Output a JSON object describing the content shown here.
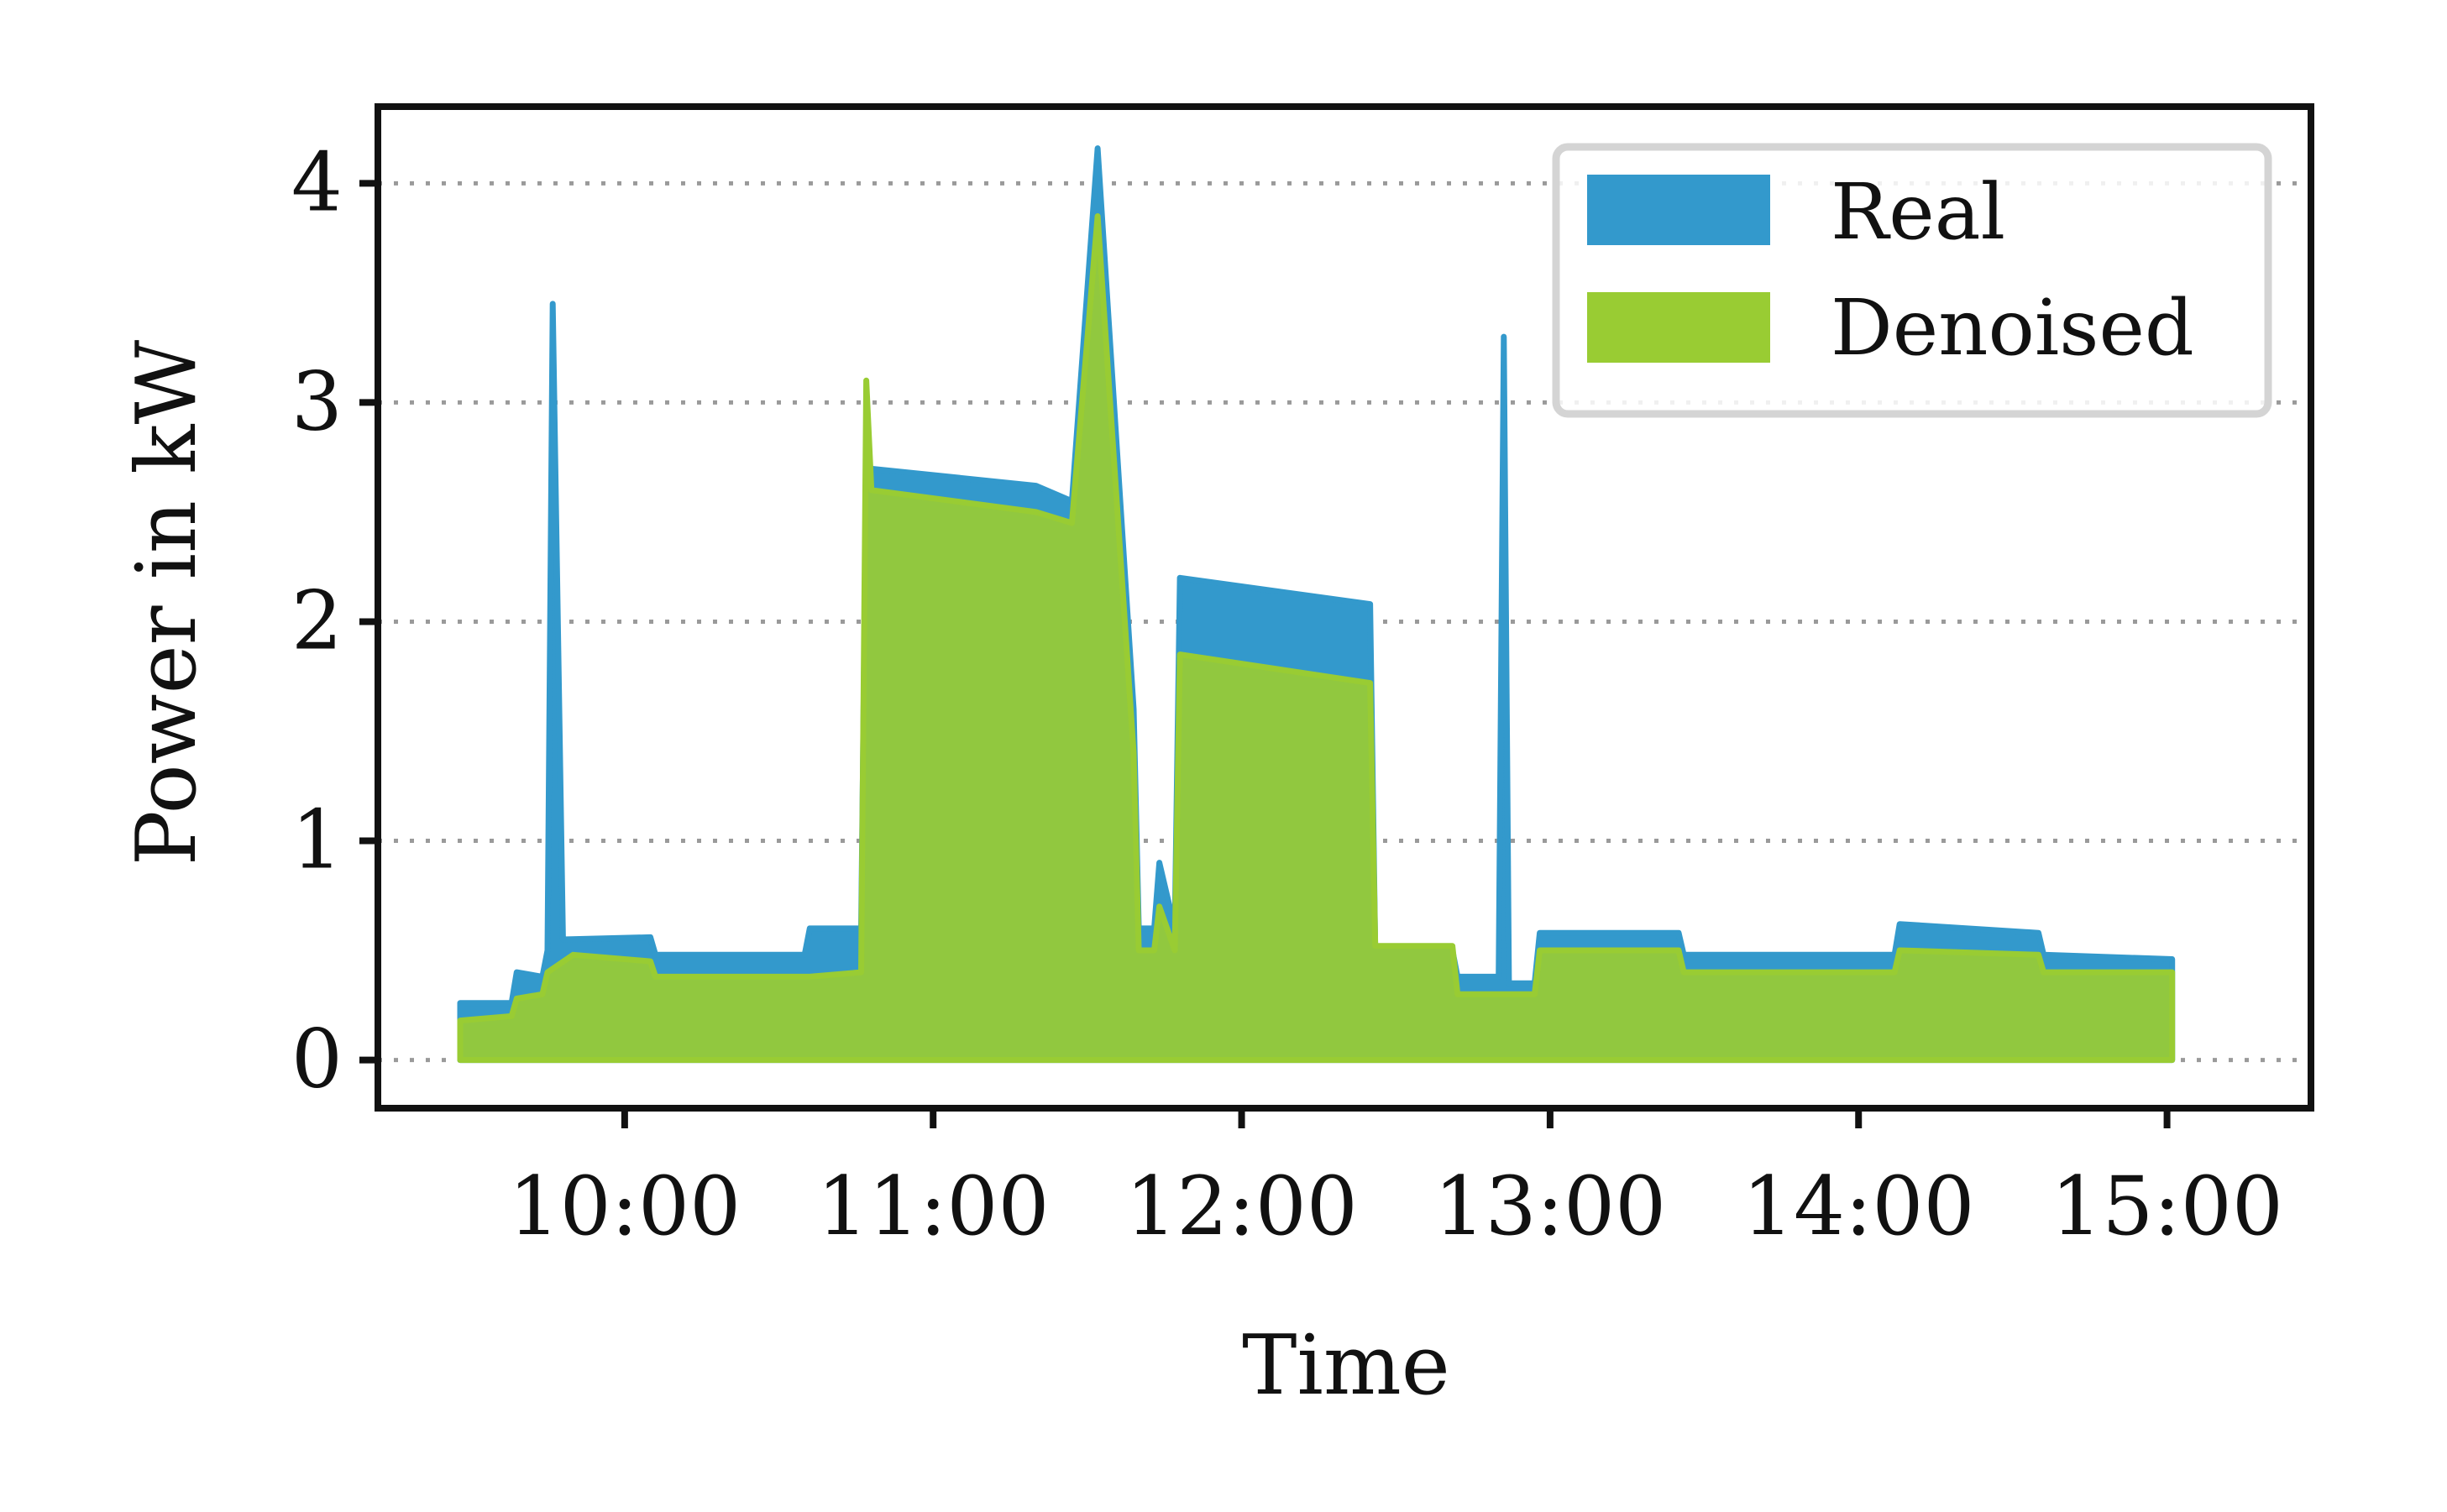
{
  "chart_data": {
    "type": "area",
    "title": "",
    "xlabel": "Time",
    "ylabel": "Power in kW",
    "xlim": [
      "09:12",
      "15:28"
    ],
    "ylim": [
      -0.22,
      4.35
    ],
    "x_ticks": [
      "10:00",
      "11:00",
      "12:00",
      "13:00",
      "14:00",
      "15:00"
    ],
    "y_ticks": [
      "0",
      "1",
      "2",
      "3",
      "4"
    ],
    "grid": "horizontal dotted",
    "legend": {
      "placement": "top-right"
    },
    "series": [
      {
        "name": "Real",
        "color": "#3399cc",
        "points": [
          [
            "09:28",
            0.26
          ],
          [
            "09:38",
            0.26
          ],
          [
            "09:39",
            0.4
          ],
          [
            "09:44",
            0.38
          ],
          [
            "09:45",
            0.5
          ],
          [
            "09:46",
            3.45
          ],
          [
            "09:48",
            0.55
          ],
          [
            "10:05",
            0.56
          ],
          [
            "10:06",
            0.48
          ],
          [
            "10:35",
            0.48
          ],
          [
            "10:36",
            0.6
          ],
          [
            "10:46",
            0.6
          ],
          [
            "10:47",
            2.7
          ],
          [
            "11:20",
            2.62
          ],
          [
            "11:27",
            2.55
          ],
          [
            "11:32",
            4.16
          ],
          [
            "11:39",
            1.6
          ],
          [
            "11:40",
            0.6
          ],
          [
            "11:43",
            0.6
          ],
          [
            "11:44",
            0.9
          ],
          [
            "11:47",
            0.6
          ],
          [
            "11:48",
            2.2
          ],
          [
            "12:25",
            2.08
          ],
          [
            "12:26",
            0.5
          ],
          [
            "12:41",
            0.5
          ],
          [
            "12:42",
            0.38
          ],
          [
            "12:50",
            0.38
          ],
          [
            "12:51",
            3.3
          ],
          [
            "12:52",
            0.35
          ],
          [
            "12:57",
            0.35
          ],
          [
            "12:58",
            0.58
          ],
          [
            "13:25",
            0.58
          ],
          [
            "13:26",
            0.48
          ],
          [
            "14:07",
            0.48
          ],
          [
            "14:08",
            0.62
          ],
          [
            "14:35",
            0.58
          ],
          [
            "14:36",
            0.48
          ],
          [
            "15:01",
            0.46
          ],
          [
            "15:01",
            0.0
          ]
        ]
      },
      {
        "name": "Denoised",
        "color": "#99cc33",
        "points": [
          [
            "09:28",
            0.18
          ],
          [
            "09:38",
            0.2
          ],
          [
            "09:39",
            0.28
          ],
          [
            "09:44",
            0.3
          ],
          [
            "09:45",
            0.4
          ],
          [
            "09:50",
            0.48
          ],
          [
            "10:05",
            0.45
          ],
          [
            "10:06",
            0.38
          ],
          [
            "10:35",
            0.38
          ],
          [
            "10:36",
            0.38
          ],
          [
            "10:46",
            0.4
          ],
          [
            "10:47",
            3.1
          ],
          [
            "10:48",
            2.6
          ],
          [
            "11:20",
            2.5
          ],
          [
            "11:27",
            2.45
          ],
          [
            "11:32",
            3.85
          ],
          [
            "11:39",
            1.4
          ],
          [
            "11:40",
            0.5
          ],
          [
            "11:43",
            0.5
          ],
          [
            "11:44",
            0.7
          ],
          [
            "11:47",
            0.5
          ],
          [
            "11:48",
            1.85
          ],
          [
            "12:25",
            1.72
          ],
          [
            "12:26",
            0.52
          ],
          [
            "12:41",
            0.52
          ],
          [
            "12:42",
            0.3
          ],
          [
            "12:57",
            0.3
          ],
          [
            "12:58",
            0.5
          ],
          [
            "13:25",
            0.5
          ],
          [
            "13:26",
            0.4
          ],
          [
            "14:07",
            0.4
          ],
          [
            "14:08",
            0.5
          ],
          [
            "14:35",
            0.48
          ],
          [
            "14:36",
            0.4
          ],
          [
            "15:01",
            0.4
          ],
          [
            "15:01",
            0.0
          ]
        ]
      }
    ]
  }
}
